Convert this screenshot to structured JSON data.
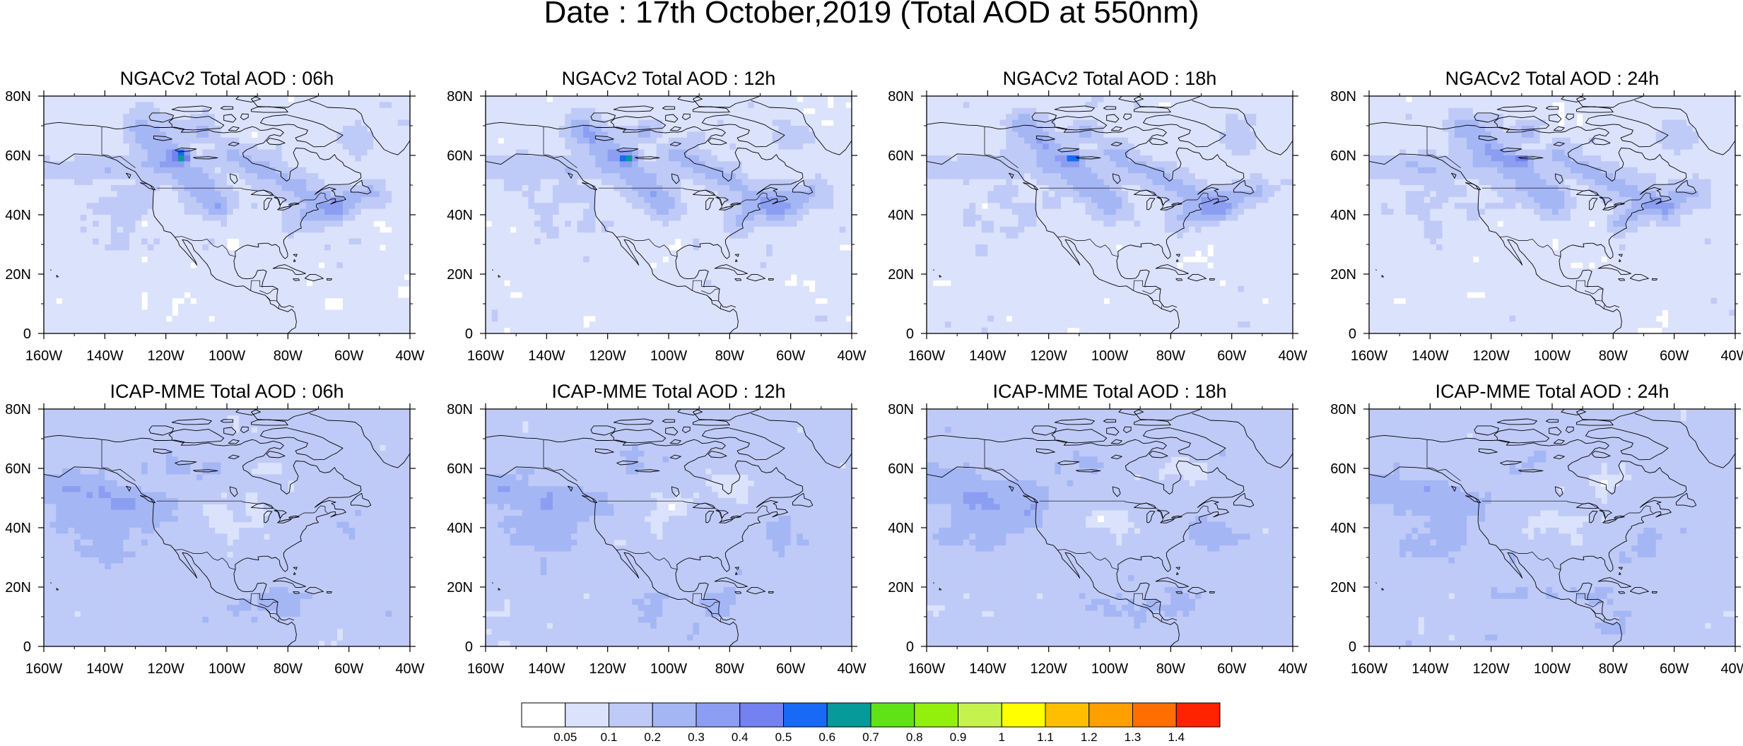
{
  "title": "Date : 17th October,2019 (Total AOD at 550nm)",
  "rows": [
    {
      "panels": [
        {
          "title": "NGACv2 Total AOD : 06h",
          "model": "NGAC",
          "hour": 6
        },
        {
          "title": "NGACv2 Total AOD : 12h",
          "model": "NGAC",
          "hour": 12
        },
        {
          "title": "NGACv2 Total AOD : 18h",
          "model": "NGAC",
          "hour": 18
        },
        {
          "title": "NGACv2 Total AOD : 24h",
          "model": "NGAC",
          "hour": 24
        }
      ]
    },
    {
      "panels": [
        {
          "title": "ICAP-MME Total AOD : 06h",
          "model": "ICAP",
          "hour": 6
        },
        {
          "title": "ICAP-MME Total AOD : 12h",
          "model": "ICAP",
          "hour": 12
        },
        {
          "title": "ICAP-MME Total AOD : 18h",
          "model": "ICAP",
          "hour": 18
        },
        {
          "title": "ICAP-MME Total AOD : 24h",
          "model": "ICAP",
          "hour": 24
        }
      ]
    }
  ],
  "map": {
    "lon_range": [
      -160,
      -40
    ],
    "lat_range": [
      0,
      80
    ],
    "x_ticks": [
      "160W",
      "140W",
      "120W",
      "100W",
      "80W",
      "60W",
      "40W"
    ],
    "y_ticks": [
      "80N",
      "60N",
      "40N",
      "20N",
      "0"
    ]
  },
  "colorbar": {
    "colors": [
      "#ffffff",
      "#dbe2fb",
      "#bfcaf7",
      "#a5b6f5",
      "#8c9ef1",
      "#7481f0",
      "#1869f6",
      "#069a99",
      "#5fe316",
      "#93f00c",
      "#c5f24d",
      "#ffff00",
      "#ffbf00",
      "#ff9f00",
      "#ff6e00",
      "#ff2300"
    ],
    "labels": [
      "0.05",
      "0.1",
      "0.2",
      "0.3",
      "0.4",
      "0.5",
      "0.6",
      "0.7",
      "0.8",
      "0.9",
      "1",
      "1.1",
      "1.2",
      "1.3",
      "1.4"
    ]
  }
}
